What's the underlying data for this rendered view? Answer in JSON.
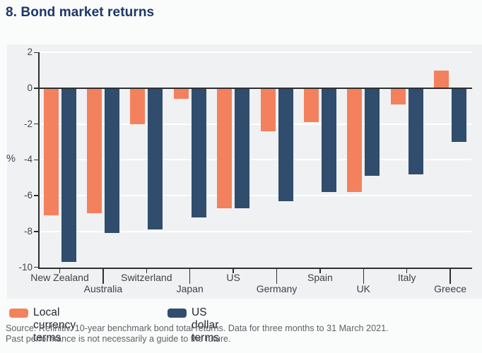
{
  "title": "8. Bond market returns",
  "chart_data": {
    "type": "bar",
    "categories": [
      "New Zealand",
      "Australia",
      "Switzerland",
      "Japan",
      "US",
      "Germany",
      "Spain",
      "UK",
      "Italy",
      "Greece"
    ],
    "series": [
      {
        "name": "Local currency terms",
        "color": "#f4815e",
        "values": [
          -7.1,
          -7.0,
          -2.0,
          -0.6,
          -6.7,
          -2.4,
          -1.9,
          -5.8,
          -0.9,
          1.0
        ]
      },
      {
        "name": "US dollar terms",
        "color": "#304d6d",
        "values": [
          -9.7,
          -8.1,
          -7.9,
          -7.2,
          -6.7,
          -6.3,
          -5.8,
          -4.9,
          -4.8,
          -3.0
        ]
      }
    ],
    "title": "8. Bond market returns",
    "xlabel": "",
    "ylabel": "%",
    "ylim": [
      -10,
      2
    ],
    "yticks": [
      2,
      0,
      -2,
      -4,
      -6,
      -8,
      -10
    ],
    "grid": true,
    "legend_position": "bottom"
  },
  "legend": {
    "items": [
      {
        "label": "Local currency terms",
        "color": "#f4815e"
      },
      {
        "label": "US dollar terms",
        "color": "#304d6d"
      }
    ]
  },
  "footer": {
    "line1": "Source: Refinitiv. 10-year benchmark bond total returns. Data for three months to 31 March 2021.",
    "line2": "Past performance is not necessarily a guide to the future."
  },
  "colors": {
    "title_text": "#1b3767",
    "plot_background": "#eff1f2",
    "gridline": "#ffffff",
    "axis": "#2d2f31",
    "local_bar": "#f4815e",
    "usd_bar": "#304d6d"
  }
}
